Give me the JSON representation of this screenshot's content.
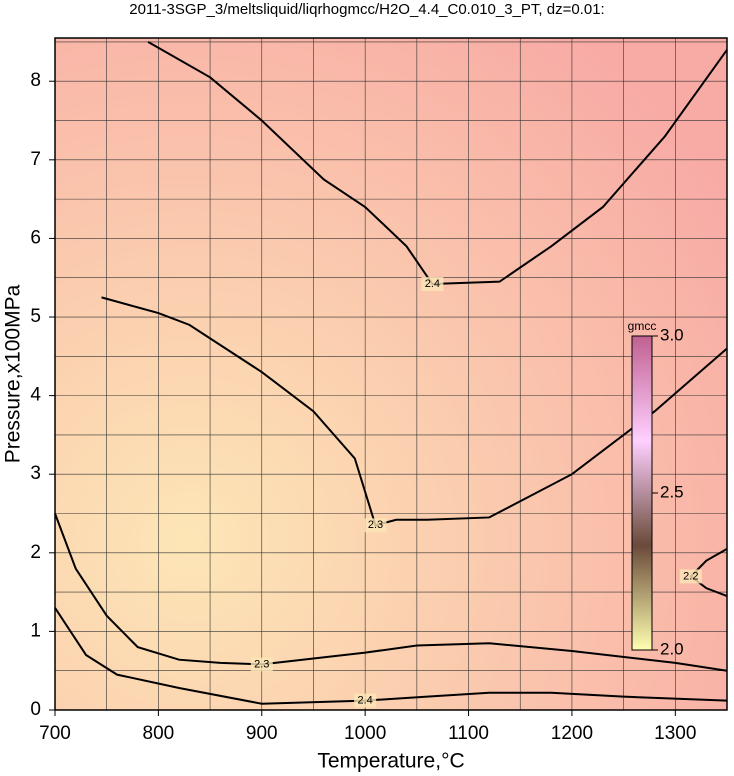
{
  "chart_data": {
    "type": "contour",
    "title": "2011-3SGP_3/meltsliquid/liqrhogmcc/H2O_4.4_C0.010_3_PT, dz=0.01:",
    "x_label": "Temperature,°C",
    "y_label": "Pressure,x100MPa",
    "xlim": [
      700,
      1350
    ],
    "ylim": [
      0,
      8.55
    ],
    "xticks": [
      700,
      800,
      900,
      1000,
      1100,
      1200,
      1300
    ],
    "yticks": [
      0,
      1,
      2,
      3,
      4,
      5,
      6,
      7,
      8
    ],
    "xgrid": [
      750,
      800,
      850,
      900,
      950,
      1000,
      1050,
      1100,
      1150,
      1200,
      1250,
      1300
    ],
    "ygrid": [
      0.5,
      1,
      1.5,
      2,
      2.5,
      3,
      3.5,
      4,
      4.5,
      5,
      5.5,
      6,
      6.5,
      7,
      7.5,
      8,
      8.5
    ],
    "contours": [
      {
        "level": 2.4,
        "x": [
          790,
          850,
          900,
          960,
          1000,
          1040,
          1065,
          1130,
          1180,
          1230,
          1290,
          1350
        ],
        "y": [
          8.5,
          8.05,
          7.5,
          6.75,
          6.4,
          5.9,
          5.42,
          5.45,
          5.9,
          6.4,
          7.3,
          8.4
        ]
      },
      {
        "level": 2.3,
        "x": [
          745,
          800,
          830,
          900,
          950,
          990,
          1010,
          1030,
          1060,
          1120,
          1200,
          1280,
          1350
        ],
        "y": [
          5.25,
          5.05,
          4.9,
          4.3,
          3.8,
          3.2,
          2.35,
          2.42,
          2.42,
          2.45,
          3.0,
          3.8,
          4.6
        ]
      },
      {
        "level": 2.3,
        "x": [
          700,
          720,
          750,
          780,
          820,
          860,
          900,
          1000,
          1050,
          1120,
          1200,
          1300,
          1350
        ],
        "y": [
          2.5,
          1.8,
          1.2,
          0.8,
          0.64,
          0.6,
          0.58,
          0.73,
          0.82,
          0.85,
          0.75,
          0.6,
          0.5
        ]
      },
      {
        "level": 2.4,
        "x": [
          700,
          730,
          760,
          820,
          900,
          1000,
          1060,
          1120,
          1180,
          1250,
          1350
        ],
        "y": [
          1.3,
          0.7,
          0.45,
          0.28,
          0.08,
          0.12,
          0.17,
          0.22,
          0.22,
          0.17,
          0.12
        ]
      },
      {
        "level": 2.2,
        "x": [
          1350,
          1330,
          1315,
          1330,
          1350
        ],
        "y": [
          2.05,
          1.9,
          1.7,
          1.55,
          1.45
        ]
      }
    ],
    "colorbar": {
      "label": "gmcc",
      "lim": [
        2.0,
        3.0
      ],
      "ticks": [
        {
          "value": 2.0,
          "label": "2.0"
        },
        2.5,
        {
          "value": 3.0,
          "label": "3.0"
        }
      ],
      "colors": [
        "#ffffb0",
        "#6a4a3a",
        "#ffd0ff",
        "#c06090"
      ]
    },
    "background_colors": [
      "#fde6b6",
      "#f8aba5"
    ]
  }
}
